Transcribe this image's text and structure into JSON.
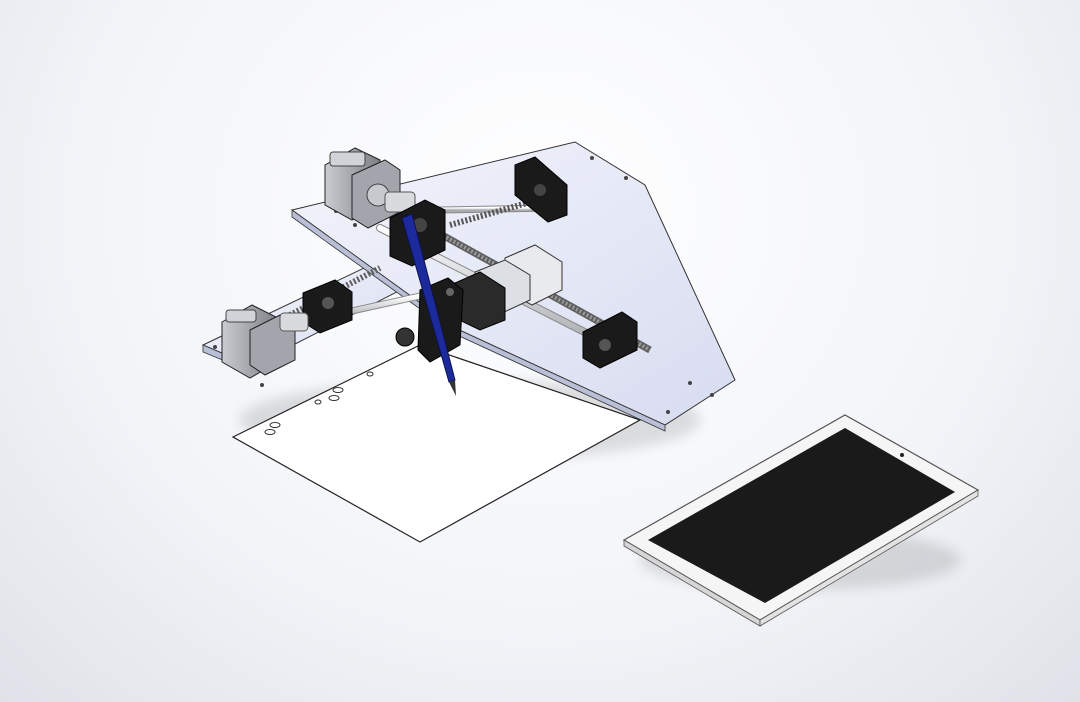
{
  "scene": {
    "view": "isometric",
    "background": "#f4f5f7",
    "components": [
      {
        "name": "base-plate-x",
        "color": "#e6e9f7"
      },
      {
        "name": "base-plate-y",
        "color": "#e6e9f7"
      },
      {
        "name": "stepper-motor-1",
        "color": "#9fa4aa"
      },
      {
        "name": "stepper-motor-2",
        "color": "#9fa4aa"
      },
      {
        "name": "lead-screw",
        "color": "#6e6e6e"
      },
      {
        "name": "guide-rod",
        "color": "#d4d6da"
      },
      {
        "name": "linear-bearing-block",
        "color": "#e4e6ea"
      },
      {
        "name": "bearing-support",
        "color": "#1a1a1a"
      },
      {
        "name": "pen",
        "color": "#1c2a9c"
      },
      {
        "name": "paper-sheet",
        "color": "#ffffff"
      },
      {
        "name": "tablet",
        "color": "#f5f5f5"
      },
      {
        "name": "tablet-screen",
        "color": "#1a1a1a"
      }
    ]
  }
}
